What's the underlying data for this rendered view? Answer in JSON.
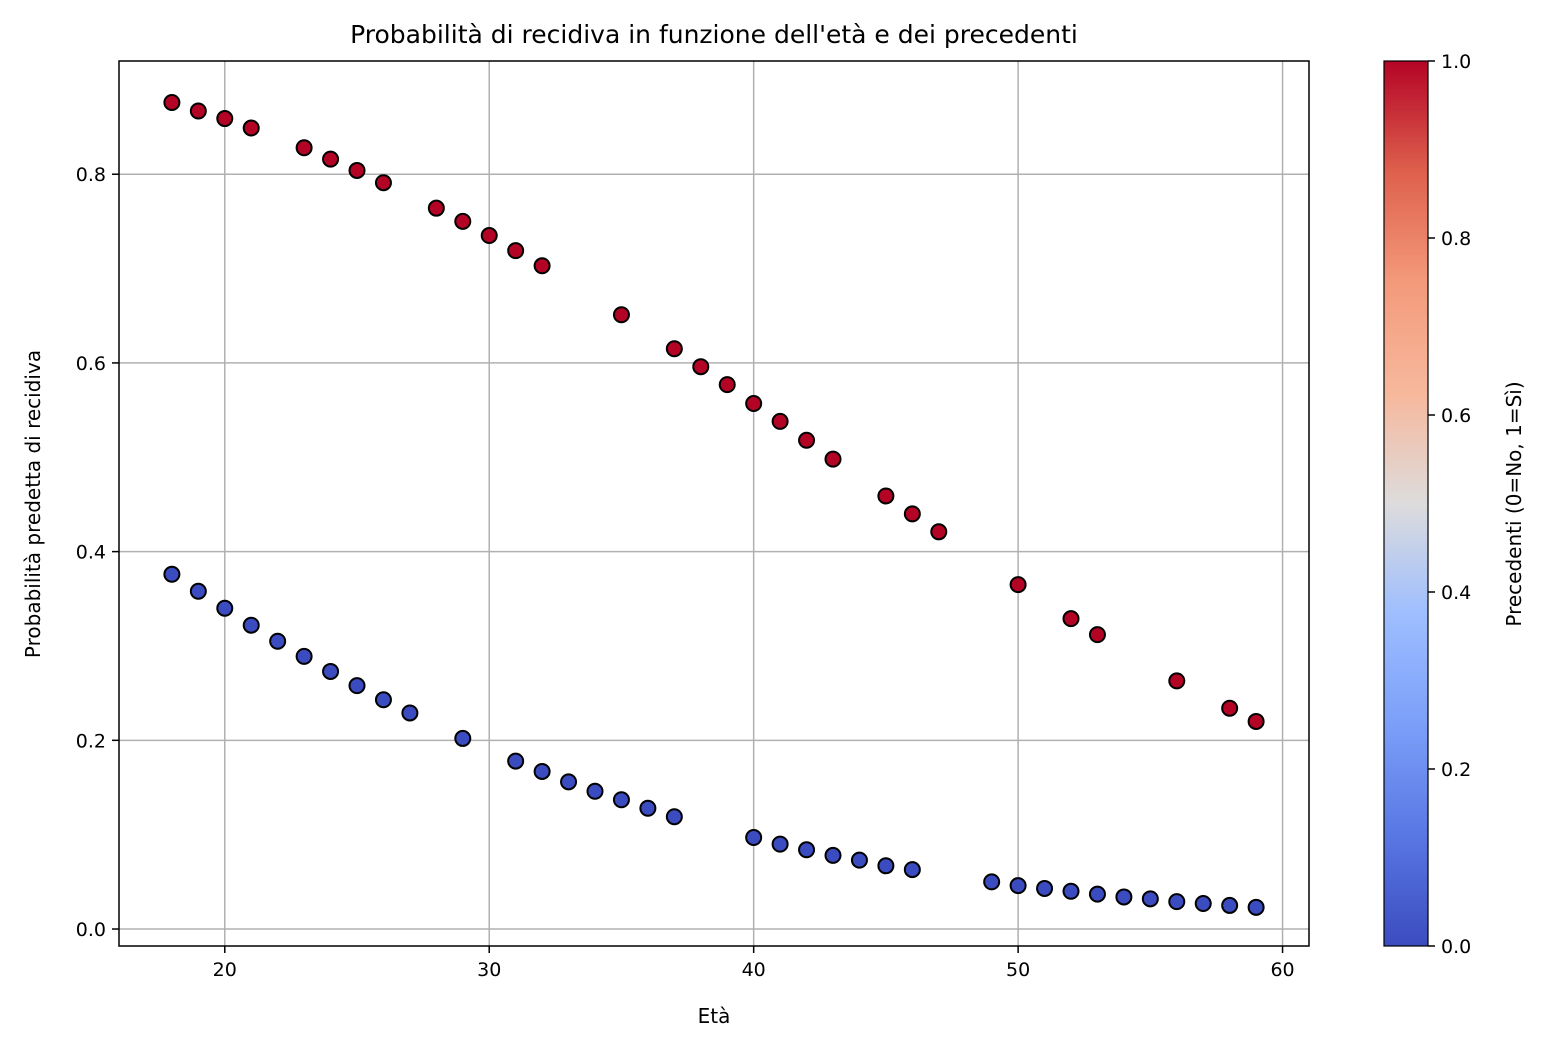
{
  "chart_data": {
    "type": "scatter",
    "title": "Probabilità di recidiva in funzione dell'età e dei precedenti",
    "xlabel": "Età",
    "ylabel": "Probabilità predetta di recidiva",
    "xlim": [
      16,
      61
    ],
    "ylim": [
      -0.018,
      0.92
    ],
    "xticks": [
      20,
      30,
      40,
      50,
      60
    ],
    "yticks": [
      0.0,
      0.2,
      0.4,
      0.6,
      0.8
    ],
    "xtick_labels": [
      "20",
      "30",
      "40",
      "50",
      "60"
    ],
    "ytick_labels": [
      "0.0",
      "0.2",
      "0.4",
      "0.6",
      "0.8"
    ],
    "grid": true,
    "colormap": "coolwarm",
    "colorbar": {
      "label": "Precedenti (0=No, 1=Sì)",
      "range": [
        0,
        1
      ],
      "ticks": [
        0.0,
        0.2,
        0.4,
        0.6,
        0.8,
        1.0
      ],
      "tick_labels": [
        "0.0",
        "0.2",
        "0.4",
        "0.6",
        "0.8",
        "1.0"
      ]
    },
    "marker_edge_color": "#000000",
    "series": [
      {
        "precedenti": 1,
        "color": "#b40426",
        "x": [
          18,
          19,
          20,
          21,
          23,
          24,
          25,
          26,
          28,
          29,
          30,
          31,
          32,
          35,
          37,
          38,
          39,
          40,
          41,
          42,
          43,
          45,
          46,
          47,
          50,
          52,
          53,
          56,
          58,
          59
        ],
        "y": [
          0.876,
          0.867,
          0.859,
          0.849,
          0.828,
          0.816,
          0.804,
          0.791,
          0.764,
          0.75,
          0.735,
          0.719,
          0.703,
          0.651,
          0.615,
          0.596,
          0.577,
          0.557,
          0.538,
          0.518,
          0.498,
          0.459,
          0.44,
          0.421,
          0.365,
          0.329,
          0.312,
          0.263,
          0.234,
          0.22
        ]
      },
      {
        "precedenti": 0,
        "color": "#3b4cc0",
        "x": [
          18,
          19,
          20,
          21,
          22,
          23,
          24,
          25,
          26,
          27,
          29,
          31,
          32,
          33,
          34,
          35,
          36,
          37,
          40,
          41,
          42,
          43,
          44,
          45,
          46,
          49,
          50,
          51,
          52,
          53,
          54,
          55,
          56,
          57,
          58,
          59
        ],
        "y": [
          0.376,
          0.358,
          0.34,
          0.322,
          0.305,
          0.289,
          0.273,
          0.258,
          0.243,
          0.229,
          0.202,
          0.178,
          0.167,
          0.156,
          0.146,
          0.137,
          0.128,
          0.119,
          0.097,
          0.09,
          0.084,
          0.078,
          0.073,
          0.067,
          0.063,
          0.05,
          0.046,
          0.043,
          0.04,
          0.037,
          0.034,
          0.032,
          0.029,
          0.027,
          0.025,
          0.023
        ]
      }
    ]
  }
}
